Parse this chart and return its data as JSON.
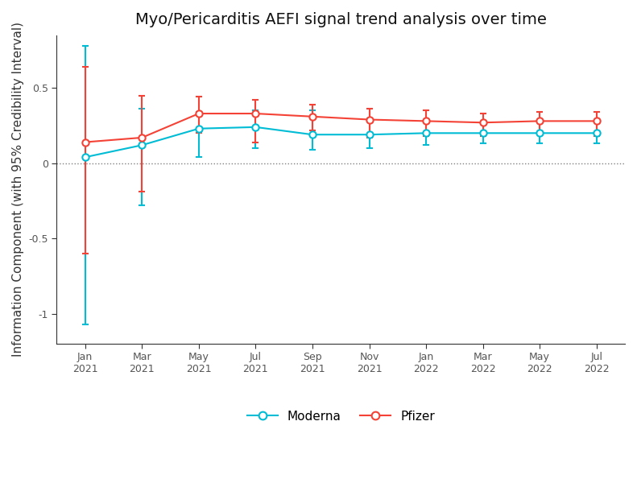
{
  "title": "Myo/Pericarditis AEFI signal trend analysis over time",
  "ylabel": "Information Component (with 95% Credibility Interval)",
  "x_labels": [
    "Jan\n2021",
    "Mar\n2021",
    "May\n2021",
    "Jul\n2021",
    "Sep\n2021",
    "Nov\n2021",
    "Jan\n2022",
    "Mar\n2022",
    "May\n2022",
    "Jul\n2022"
  ],
  "x_positions": [
    0,
    1,
    2,
    3,
    4,
    5,
    6,
    7,
    8,
    9
  ],
  "moderna_y": [
    0.04,
    0.12,
    0.23,
    0.24,
    0.19,
    0.19,
    0.2,
    0.2,
    0.2,
    0.2
  ],
  "moderna_ylo": [
    -1.07,
    -0.28,
    0.04,
    0.1,
    0.09,
    0.1,
    0.12,
    0.13,
    0.13,
    0.13
  ],
  "moderna_yhi": [
    0.78,
    0.36,
    0.34,
    0.35,
    0.35,
    0.3,
    0.28,
    0.27,
    0.27,
    0.27
  ],
  "pfizer_y": [
    0.14,
    0.17,
    0.33,
    0.33,
    0.31,
    0.29,
    0.28,
    0.27,
    0.28,
    0.28
  ],
  "pfizer_ylo": [
    -0.6,
    -0.19,
    0.2,
    0.14,
    0.22,
    0.17,
    0.18,
    0.18,
    0.19,
    0.18
  ],
  "pfizer_yhi": [
    0.64,
    0.45,
    0.44,
    0.42,
    0.39,
    0.36,
    0.35,
    0.33,
    0.34,
    0.34
  ],
  "moderna_color": "#00BCD4",
  "pfizer_color": "#F44336",
  "background_color": "#FFFFFF",
  "ylim": [
    -1.2,
    0.85
  ],
  "yticks": [
    -1.0,
    -0.5,
    0.0,
    0.5
  ],
  "legend_labels": [
    "Moderna",
    "Pfizer"
  ],
  "title_fontsize": 14,
  "axis_fontsize": 11,
  "tick_fontsize": 9,
  "legend_fontsize": 11
}
